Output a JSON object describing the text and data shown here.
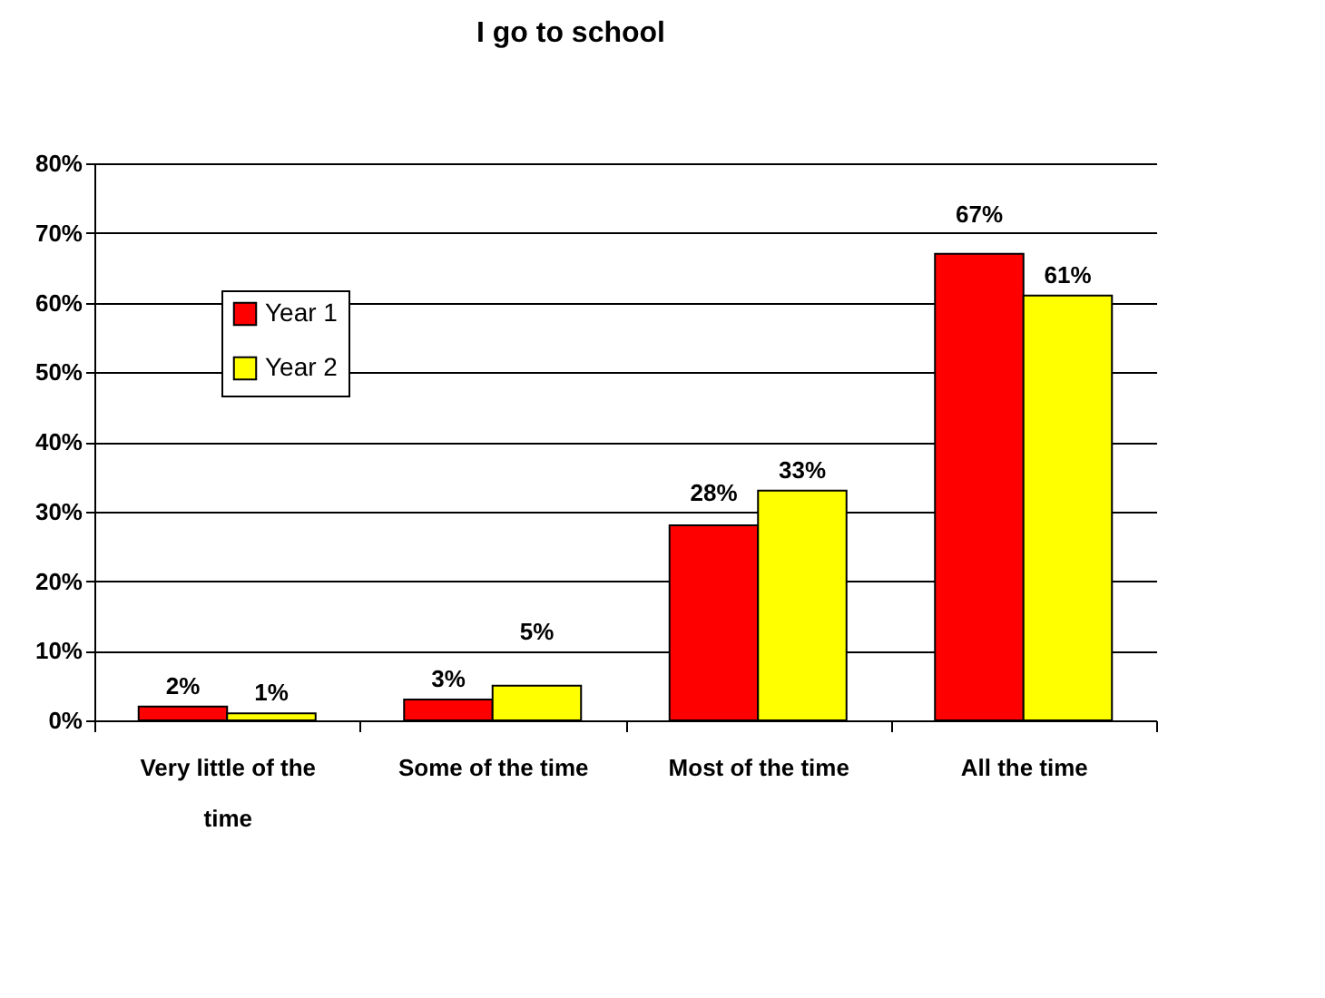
{
  "chart_data": {
    "type": "bar",
    "title": "I go to school",
    "categories": [
      "Very little of the time",
      "Some of the time",
      "Most of the time",
      "All the time"
    ],
    "series": [
      {
        "name": "Year 1",
        "color": "#ff0000",
        "values": [
          2,
          3,
          28,
          67
        ],
        "value_labels": [
          "2%",
          "3%",
          "28%",
          "67%"
        ]
      },
      {
        "name": "Year 2",
        "color": "#ffff00",
        "values": [
          1,
          5,
          33,
          61
        ],
        "value_labels": [
          "1%",
          "5%",
          "33%",
          "61%"
        ]
      }
    ],
    "ylim": [
      0,
      80
    ],
    "yticks": [
      {
        "value": 0,
        "label": "0%"
      },
      {
        "value": 10,
        "label": "10%"
      },
      {
        "value": 20,
        "label": "20%"
      },
      {
        "value": 30,
        "label": "30%"
      },
      {
        "value": 40,
        "label": "40%"
      },
      {
        "value": 50,
        "label": "50%"
      },
      {
        "value": 60,
        "label": "60%"
      },
      {
        "value": 70,
        "label": "70%"
      },
      {
        "value": 80,
        "label": "80%"
      }
    ],
    "grid": "y",
    "legend": "top left"
  }
}
